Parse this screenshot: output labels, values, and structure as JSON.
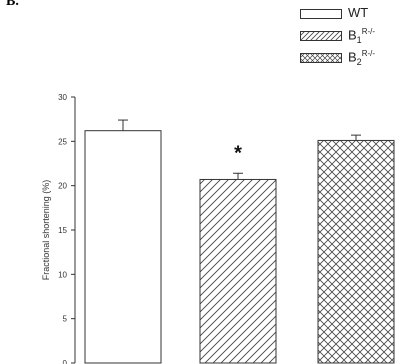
{
  "panel_label": "B.",
  "legend": {
    "items": [
      {
        "label": "WT",
        "sub": "",
        "sup": "",
        "pattern": "none"
      },
      {
        "label": "B",
        "sub": "1",
        "sup": "R-/-",
        "pattern": "diagonal"
      },
      {
        "label": "B",
        "sub": "2",
        "sup": "R-/-",
        "pattern": "crosshatch"
      }
    ]
  },
  "chart_data": {
    "type": "bar",
    "categories": [
      "WT",
      "B1R-/-",
      "B2R-/-"
    ],
    "values": [
      26.2,
      20.7,
      25.1
    ],
    "errors": [
      1.2,
      0.7,
      0.6
    ],
    "patterns": [
      "none",
      "diagonal",
      "crosshatch"
    ],
    "ylabel": "Fractional shortening (%)",
    "ylim": [
      0,
      30
    ],
    "yticks": [
      0,
      5,
      10,
      15,
      20,
      25,
      30
    ],
    "annotations": [
      {
        "category": "B1R-/-",
        "text": "*"
      }
    ],
    "grid": false
  }
}
